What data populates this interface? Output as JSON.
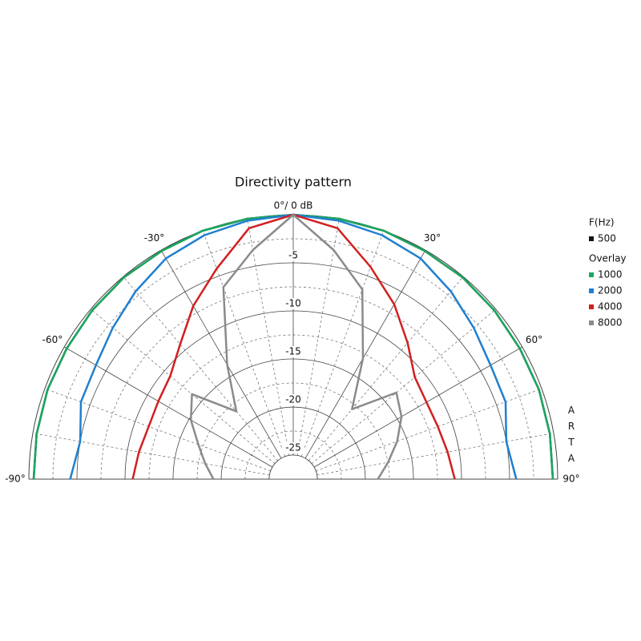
{
  "chart_data": {
    "type": "polar",
    "title": "Directivity pattern",
    "theta": [
      -90,
      -80,
      -70,
      -60,
      -50,
      -40,
      -30,
      -20,
      -10,
      0,
      10,
      20,
      30,
      40,
      50,
      60,
      70,
      80,
      90
    ],
    "thetaticks": [
      {
        "value": -90,
        "label": "-90°"
      },
      {
        "value": -60,
        "label": "-60°"
      },
      {
        "value": -30,
        "label": "-30°"
      },
      {
        "value": 0,
        "label": "0°/ 0 dB"
      },
      {
        "value": 30,
        "label": "30°"
      },
      {
        "value": 60,
        "label": "60°"
      },
      {
        "value": 90,
        "label": "90°"
      }
    ],
    "rlim": [
      -27.5,
      0
    ],
    "rticks": [
      -5,
      -10,
      -15,
      -20,
      -25
    ],
    "grid": true,
    "legend_title": "F(Hz)",
    "legend_group": "Overlay",
    "legend_position": "right",
    "watermark": "ARTA",
    "series": [
      {
        "name": "500",
        "color": "#111111",
        "values": [
          -0.5,
          -0.4,
          -0.3,
          -0.3,
          -0.2,
          -0.1,
          -0.1,
          0,
          0,
          0,
          0,
          0,
          -0.1,
          -0.1,
          -0.2,
          -0.3,
          -0.3,
          -0.4,
          -0.5
        ]
      },
      {
        "name": "1000",
        "color": "#1aa85f",
        "values": [
          -0.5,
          -0.4,
          -0.3,
          -0.3,
          -0.2,
          -0.1,
          -0.1,
          0,
          0,
          0,
          0,
          0,
          -0.1,
          -0.1,
          -0.2,
          -0.3,
          -0.3,
          -0.4,
          -0.5
        ]
      },
      {
        "name": "2000",
        "color": "#1f7fd0",
        "values": [
          -4.3,
          -5,
          -4,
          -3.8,
          -3,
          -2,
          -1,
          -0.5,
          -0.2,
          0,
          -0.2,
          -0.5,
          -1,
          -2,
          -3,
          -3.8,
          -4,
          -5,
          -4.3
        ]
      },
      {
        "name": "4000",
        "color": "#d11f1f",
        "values": [
          -10.8,
          -11.2,
          -11.5,
          -11.3,
          -10.8,
          -9.2,
          -6.7,
          -4.2,
          -1,
          0,
          -1,
          -4,
          -6.5,
          -9,
          -11,
          -11.5,
          -11.5,
          -11.2,
          -10.7
        ]
      },
      {
        "name": "8000",
        "color": "#8a8a8a",
        "values": [
          -19.2,
          -18.2,
          -17,
          -15.2,
          -13.75,
          -18.3,
          -13.75,
          -6.25,
          -3.3,
          0,
          -3.3,
          -6.5,
          -13,
          -18,
          -13.5,
          -14.5,
          -16,
          -17.5,
          -18.7
        ]
      }
    ]
  }
}
